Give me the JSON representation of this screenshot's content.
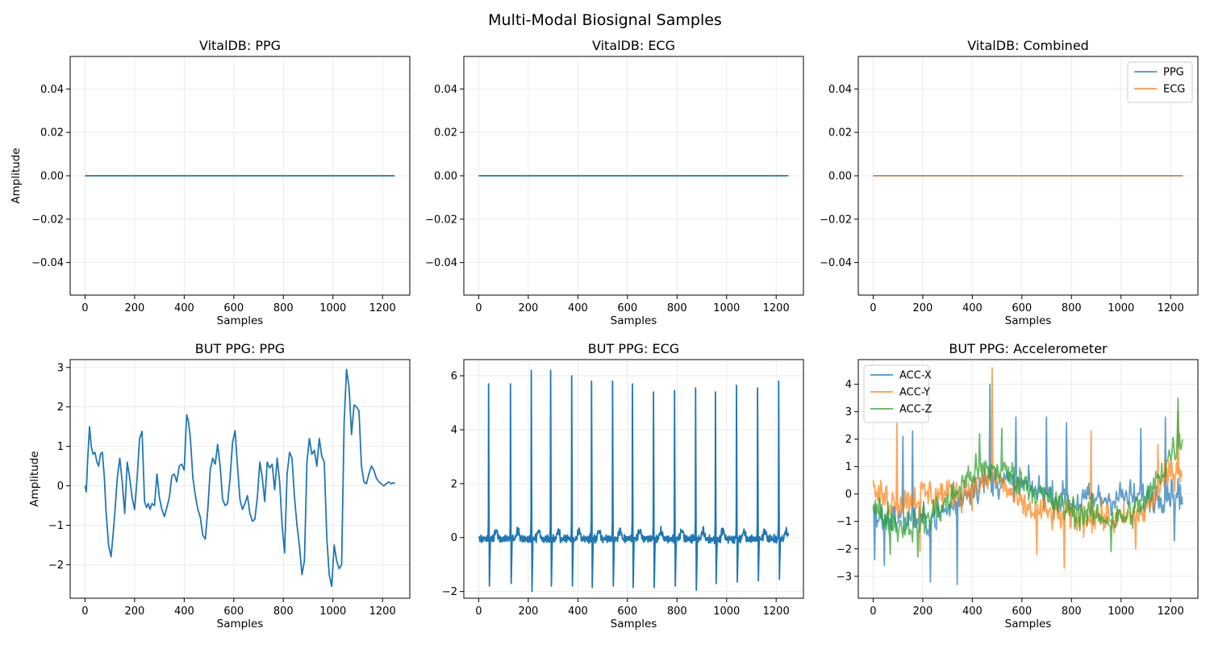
{
  "figure": {
    "title": "Multi-Modal Biosignal Samples",
    "colors": {
      "blue": "#1f77b4",
      "orange": "#ff7f0e",
      "green": "#2ca02c",
      "grid": "#e6e6e6"
    }
  },
  "chart_data": [
    {
      "type": "line",
      "title": "VitalDB: PPG",
      "xlabel": "Samples",
      "ylabel": "Amplitude",
      "xlim": [
        -60,
        1310
      ],
      "ylim": [
        -0.055,
        0.055
      ],
      "xticks": [
        0,
        200,
        400,
        600,
        800,
        1000,
        1200
      ],
      "yticks": [
        -0.04,
        -0.02,
        0.0,
        0.02,
        0.04
      ],
      "ytick_labels": [
        "−0.04",
        "−0.02",
        "0.00",
        "0.02",
        "0.04"
      ],
      "grid": true,
      "series": [
        {
          "name": "",
          "color": "#1f77b4",
          "alpha": 1.0,
          "x": [
            0,
            1249
          ],
          "y": [
            0,
            0
          ]
        }
      ]
    },
    {
      "type": "line",
      "title": "VitalDB: ECG",
      "xlabel": "Samples",
      "ylabel": "",
      "xlim": [
        -60,
        1310
      ],
      "ylim": [
        -0.055,
        0.055
      ],
      "xticks": [
        0,
        200,
        400,
        600,
        800,
        1000,
        1200
      ],
      "yticks": [
        -0.04,
        -0.02,
        0.0,
        0.02,
        0.04
      ],
      "ytick_labels": [
        "−0.04",
        "−0.02",
        "0.00",
        "0.02",
        "0.04"
      ],
      "grid": true,
      "series": [
        {
          "name": "",
          "color": "#1f77b4",
          "alpha": 1.0,
          "x": [
            0,
            1249
          ],
          "y": [
            0,
            0
          ]
        }
      ]
    },
    {
      "type": "line",
      "title": "VitalDB: Combined",
      "xlabel": "Samples",
      "ylabel": "",
      "xlim": [
        -60,
        1310
      ],
      "ylim": [
        -0.055,
        0.055
      ],
      "xticks": [
        0,
        200,
        400,
        600,
        800,
        1000,
        1200
      ],
      "yticks": [
        -0.04,
        -0.02,
        0.0,
        0.02,
        0.04
      ],
      "ytick_labels": [
        "−0.04",
        "−0.02",
        "0.00",
        "0.02",
        "0.04"
      ],
      "grid": true,
      "legend": "upper right",
      "series": [
        {
          "name": "PPG",
          "color": "#1f77b4",
          "alpha": 0.7,
          "x": [
            0,
            1249
          ],
          "y": [
            0,
            0
          ]
        },
        {
          "name": "ECG",
          "color": "#ff7f0e",
          "alpha": 0.7,
          "x": [
            0,
            1249
          ],
          "y": [
            0,
            0
          ]
        }
      ]
    },
    {
      "type": "line",
      "title": "BUT PPG: PPG",
      "xlabel": "Samples",
      "ylabel": "Amplitude",
      "xlim": [
        -60,
        1310
      ],
      "ylim": [
        -2.85,
        3.2
      ],
      "xticks": [
        0,
        200,
        400,
        600,
        800,
        1000,
        1200
      ],
      "yticks": [
        -2,
        -1,
        0,
        1,
        2,
        3
      ],
      "ytick_labels": [
        "−2",
        "−1",
        "0",
        "1",
        "2",
        "3"
      ],
      "grid": true,
      "series": [
        {
          "name": "",
          "color": "#1f77b4",
          "alpha": 1.0,
          "x": [
            0,
            5,
            10,
            18,
            25,
            32,
            40,
            48,
            55,
            62,
            70,
            78,
            85,
            95,
            105,
            112,
            120,
            130,
            140,
            150,
            160,
            170,
            180,
            190,
            200,
            210,
            220,
            230,
            240,
            248,
            255,
            262,
            270,
            280,
            290,
            300,
            310,
            320,
            330,
            340,
            350,
            360,
            370,
            380,
            390,
            400,
            410,
            418,
            425,
            435,
            445,
            455,
            465,
            475,
            485,
            495,
            505,
            515,
            525,
            535,
            545,
            555,
            565,
            575,
            585,
            595,
            605,
            615,
            625,
            635,
            645,
            655,
            665,
            675,
            685,
            695,
            705,
            715,
            725,
            735,
            745,
            755,
            765,
            775,
            785,
            795,
            805,
            815,
            825,
            835,
            845,
            855,
            865,
            875,
            885,
            895,
            905,
            915,
            925,
            935,
            945,
            955,
            965,
            975,
            985,
            995,
            1005,
            1015,
            1025,
            1035,
            1045,
            1055,
            1065,
            1075,
            1085,
            1095,
            1105,
            1115,
            1125,
            1135,
            1145,
            1155,
            1165,
            1175,
            1185,
            1195,
            1205,
            1215,
            1225,
            1235,
            1245,
            1249
          ],
          "y": [
            0.0,
            -0.15,
            0.6,
            1.5,
            1.0,
            0.8,
            0.85,
            0.6,
            0.5,
            0.8,
            0.85,
            0.2,
            -0.7,
            -1.5,
            -1.8,
            -1.3,
            -0.7,
            0.2,
            0.7,
            0.1,
            -0.7,
            0.6,
            0.2,
            -0.3,
            -0.6,
            0.2,
            1.2,
            1.38,
            -0.4,
            -0.55,
            -0.45,
            -0.6,
            -0.45,
            -0.5,
            0.3,
            -0.3,
            -0.6,
            -0.78,
            -0.55,
            -0.3,
            0.25,
            0.3,
            0.1,
            0.5,
            0.55,
            0.4,
            1.8,
            1.6,
            1.2,
            0.2,
            -0.25,
            -0.6,
            -0.8,
            -1.25,
            -1.35,
            -0.6,
            0.4,
            0.7,
            0.55,
            1.05,
            0.5,
            -0.35,
            -0.5,
            -0.45,
            0.2,
            1.1,
            1.4,
            0.5,
            -0.35,
            -0.6,
            -0.45,
            -0.25,
            -0.7,
            -0.9,
            -0.85,
            -0.3,
            0.6,
            0.2,
            -0.4,
            0.6,
            0.45,
            0.55,
            -0.1,
            0.7,
            0.1,
            -1.0,
            -1.7,
            0.3,
            0.85,
            0.7,
            -0.3,
            -1.0,
            -1.55,
            -2.25,
            -1.9,
            0.6,
            1.2,
            0.8,
            0.9,
            0.5,
            1.2,
            0.75,
            0.6,
            -1.3,
            -2.25,
            -2.55,
            -1.5,
            -1.9,
            -2.1,
            -2.0,
            1.6,
            2.95,
            2.5,
            1.3,
            2.05,
            2.0,
            1.9,
            0.5,
            0.1,
            0.05,
            0.3,
            0.5,
            0.4,
            0.2,
            0.1,
            0.05,
            0.0,
            0.05,
            0.1,
            0.05,
            0.08,
            0.05
          ]
        }
      ]
    },
    {
      "type": "line",
      "title": "BUT PPG: ECG",
      "xlabel": "Samples",
      "ylabel": "",
      "xlim": [
        -60,
        1310
      ],
      "ylim": [
        -2.25,
        6.6
      ],
      "xticks": [
        0,
        200,
        400,
        600,
        800,
        1000,
        1200
      ],
      "yticks": [
        -2,
        0,
        2,
        4,
        6
      ],
      "ytick_labels": [
        "−2",
        "0",
        "2",
        "4",
        "6"
      ],
      "grid": true,
      "beats": {
        "x": [
          40,
          128,
          212,
          290,
          375,
          455,
          540,
          620,
          705,
          790,
          875,
          955,
          1040,
          1125,
          1210
        ],
        "peak": [
          5.7,
          5.7,
          6.2,
          6.2,
          6.0,
          5.8,
          5.8,
          5.7,
          5.4,
          5.45,
          5.55,
          5.4,
          5.65,
          5.55,
          5.8
        ],
        "trough": [
          -1.8,
          -1.7,
          -2.0,
          -1.8,
          -1.8,
          -1.85,
          -1.8,
          -1.85,
          -1.85,
          -1.8,
          -1.95,
          -1.7,
          -1.65,
          -1.6,
          -1.55
        ]
      },
      "series": [
        {
          "name": "",
          "color": "#1f77b4",
          "alpha": 1.0,
          "x": [],
          "y": []
        }
      ]
    },
    {
      "type": "line",
      "title": "BUT PPG: Accelerometer",
      "xlabel": "Samples",
      "ylabel": "",
      "xlim": [
        -60,
        1310
      ],
      "ylim": [
        -3.8,
        4.9
      ],
      "xticks": [
        0,
        200,
        400,
        600,
        800,
        1000,
        1200
      ],
      "yticks": [
        -3,
        -2,
        -1,
        0,
        1,
        2,
        3,
        4
      ],
      "ytick_labels": [
        "−3",
        "−2",
        "−1",
        "0",
        "1",
        "2",
        "3",
        "4"
      ],
      "grid": true,
      "legend": "upper left",
      "series": [
        {
          "name": "ACC-X",
          "color": "#1f77b4",
          "alpha": 0.7,
          "x": [],
          "y": []
        },
        {
          "name": "ACC-Y",
          "color": "#ff7f0e",
          "alpha": 0.7,
          "x": [],
          "y": []
        },
        {
          "name": "ACC-Z",
          "color": "#2ca02c",
          "alpha": 0.7,
          "x": [],
          "y": []
        }
      ],
      "envelope": {
        "x": [
          0,
          100,
          200,
          300,
          400,
          500,
          600,
          700,
          800,
          900,
          1000,
          1100,
          1200,
          1249
        ],
        "mean_x": [
          -0.8,
          -0.9,
          -1.0,
          -0.6,
          0.3,
          0.5,
          0.3,
          0.0,
          -0.3,
          -0.2,
          -0.1,
          -0.2,
          0.1,
          0.0
        ],
        "mean_y": [
          0.0,
          -0.3,
          0.0,
          0.0,
          0.2,
          0.6,
          -0.5,
          -0.7,
          -0.9,
          -0.8,
          -1.0,
          -0.6,
          0.8,
          1.0
        ],
        "mean_z": [
          -0.5,
          -1.2,
          -1.0,
          -0.3,
          0.8,
          0.9,
          0.5,
          -0.2,
          -0.6,
          -0.8,
          -0.9,
          -0.3,
          1.5,
          2.2
        ],
        "spread": 1.2,
        "spikes_x": [
          [
            5,
            -2.4
          ],
          [
            45,
            -2.6
          ],
          [
            120,
            2.1
          ],
          [
            160,
            2.3
          ],
          [
            230,
            -3.2
          ],
          [
            340,
            -3.3
          ],
          [
            470,
            4.0
          ],
          [
            575,
            2.8
          ],
          [
            700,
            2.8
          ],
          [
            780,
            2.6
          ],
          [
            1080,
            2.4
          ],
          [
            1180,
            2.8
          ],
          [
            1215,
            -1.7
          ]
        ],
        "spikes_y": [
          [
            0,
            0.5
          ],
          [
            95,
            2.6
          ],
          [
            190,
            -2.1
          ],
          [
            480,
            4.6
          ],
          [
            660,
            -2.2
          ],
          [
            770,
            -2.7
          ],
          [
            880,
            2.3
          ],
          [
            1060,
            -2.0
          ],
          [
            1150,
            1.8
          ],
          [
            1230,
            3.0
          ]
        ],
        "spikes_z": [
          [
            70,
            -2.2
          ],
          [
            180,
            -2.3
          ],
          [
            430,
            2.2
          ],
          [
            520,
            2.4
          ],
          [
            960,
            -2.1
          ],
          [
            1230,
            3.5
          ]
        ]
      }
    }
  ]
}
